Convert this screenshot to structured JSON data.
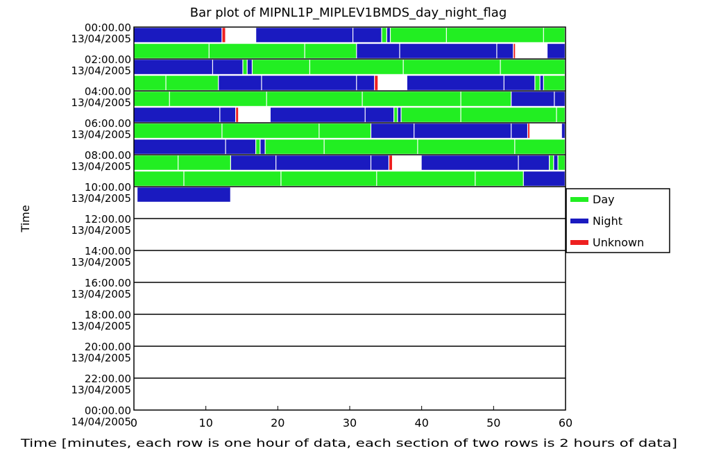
{
  "chart_data": {
    "type": "bar",
    "title": "Bar plot of MIPNL1P_MIPLEV1BMDS_day_night_flag",
    "xlabel": "Time [minutes, each row is one hour of data, each section of two rows is 2 hours of data]",
    "ylabel": "Time",
    "xlim": [
      0,
      60
    ],
    "x_ticks": [
      0,
      10,
      20,
      30,
      40,
      50,
      60
    ],
    "x_tick_labels": [
      "0",
      "10",
      "20",
      "30",
      "40",
      "50",
      "60"
    ],
    "y_tick_labels": [
      {
        "time": "00:00.00",
        "date": "13/04/2005"
      },
      {
        "time": "02:00.00",
        "date": "13/04/2005"
      },
      {
        "time": "04:00.00",
        "date": "13/04/2005"
      },
      {
        "time": "06:00.00",
        "date": "13/04/2005"
      },
      {
        "time": "08:00.00",
        "date": "13/04/2005"
      },
      {
        "time": "10:00.00",
        "date": "13/04/2005"
      },
      {
        "time": "12:00.00",
        "date": "13/04/2005"
      },
      {
        "time": "14:00.00",
        "date": "13/04/2005"
      },
      {
        "time": "16:00.00",
        "date": "13/04/2005"
      },
      {
        "time": "18:00.00",
        "date": "13/04/2005"
      },
      {
        "time": "20:00.00",
        "date": "13/04/2005"
      },
      {
        "time": "22:00.00",
        "date": "13/04/2005"
      },
      {
        "time": "00:00.00",
        "date": "14/04/2005"
      }
    ],
    "legend": {
      "position": "right",
      "entries": [
        {
          "name": "Day",
          "color": "#22ee22"
        },
        {
          "name": "Night",
          "color": "#1a1ac0"
        },
        {
          "name": "Unknown",
          "color": "#ee2020"
        }
      ]
    },
    "colors": {
      "day": "#22ee22",
      "night": "#1a1ac0",
      "unknown": "#ee2020",
      "separator": "#ffffff"
    },
    "grid": false,
    "rows": [
      {
        "segments": [
          [
            "night",
            0,
            12.3
          ],
          [
            "unknown",
            12.3,
            12.8
          ],
          [
            "night",
            17,
            30.5
          ],
          [
            "night",
            30.5,
            34.5
          ],
          [
            "day",
            34.5,
            35.2
          ],
          [
            "night",
            35.2,
            35.7
          ],
          [
            "day",
            35.7,
            43.5
          ],
          [
            "day",
            43.5,
            57
          ],
          [
            "day",
            57,
            60
          ]
        ]
      },
      {
        "segments": [
          [
            "day",
            0,
            10.5
          ],
          [
            "day",
            10.5,
            23.8
          ],
          [
            "day",
            23.8,
            31
          ],
          [
            "night",
            31,
            37
          ],
          [
            "night",
            37,
            50.5
          ],
          [
            "night",
            50.5,
            52.8
          ],
          [
            "unknown",
            52.8,
            53.1
          ],
          [
            "night",
            57.5,
            60
          ]
        ]
      },
      {
        "segments": [
          [
            "night",
            0,
            11
          ],
          [
            "night",
            11,
            15.2
          ],
          [
            "day",
            15.2,
            15.8
          ],
          [
            "night",
            15.8,
            16.5
          ],
          [
            "day",
            16.5,
            24.5
          ],
          [
            "day",
            24.5,
            37.5
          ],
          [
            "day",
            37.5,
            51
          ],
          [
            "day",
            51,
            60
          ]
        ]
      },
      {
        "segments": [
          [
            "day",
            0,
            4.5
          ],
          [
            "day",
            4.5,
            11.8
          ],
          [
            "night",
            11.8,
            17.8
          ],
          [
            "night",
            17.8,
            31
          ],
          [
            "night",
            31,
            33.5
          ],
          [
            "unknown",
            33.5,
            34
          ],
          [
            "night",
            38,
            51.5
          ],
          [
            "night",
            51.5,
            55.8
          ],
          [
            "day",
            55.8,
            56.5
          ],
          [
            "night",
            56.5,
            57
          ],
          [
            "day",
            57,
            60
          ]
        ]
      },
      {
        "segments": [
          [
            "day",
            0,
            5
          ],
          [
            "day",
            5,
            18.5
          ],
          [
            "day",
            18.5,
            31.8
          ],
          [
            "day",
            31.8,
            45.5
          ],
          [
            "day",
            45.5,
            52.5
          ],
          [
            "night",
            52.5,
            58.5
          ],
          [
            "night",
            58.5,
            60
          ]
        ]
      },
      {
        "segments": [
          [
            "night",
            0,
            12
          ],
          [
            "night",
            12,
            14.2
          ],
          [
            "unknown",
            14.2,
            14.6
          ],
          [
            "night",
            19,
            32.2
          ],
          [
            "night",
            32.2,
            36.2
          ],
          [
            "day",
            36.2,
            36.7
          ],
          [
            "night",
            36.7,
            37.2
          ],
          [
            "day",
            37.2,
            45.5
          ],
          [
            "day",
            45.5,
            58.8
          ],
          [
            "day",
            58.8,
            60
          ]
        ]
      },
      {
        "segments": [
          [
            "day",
            0,
            12.3
          ],
          [
            "day",
            12.3,
            25.8
          ],
          [
            "day",
            25.8,
            33
          ],
          [
            "night",
            33,
            39
          ],
          [
            "night",
            39,
            52.5
          ],
          [
            "night",
            52.5,
            54.8
          ],
          [
            "unknown",
            54.8,
            55.1
          ],
          [
            "night",
            59.5,
            60
          ]
        ]
      },
      {
        "segments": [
          [
            "night",
            0,
            12.8
          ],
          [
            "night",
            12.8,
            17
          ],
          [
            "day",
            17,
            17.6
          ],
          [
            "night",
            17.6,
            18.3
          ],
          [
            "day",
            18.3,
            26.5
          ],
          [
            "day",
            26.5,
            39.5
          ],
          [
            "day",
            39.5,
            53
          ],
          [
            "day",
            53,
            60
          ]
        ]
      },
      {
        "segments": [
          [
            "day",
            0,
            6.2
          ],
          [
            "day",
            6.2,
            13.5
          ],
          [
            "night",
            13.5,
            19.8
          ],
          [
            "night",
            19.8,
            33
          ],
          [
            "night",
            33,
            35.5
          ],
          [
            "unknown",
            35.5,
            36
          ],
          [
            "night",
            40,
            53.5
          ],
          [
            "night",
            53.5,
            57.8
          ],
          [
            "day",
            57.8,
            58.4
          ],
          [
            "night",
            58.4,
            59
          ],
          [
            "day",
            59,
            60
          ]
        ]
      },
      {
        "segments": [
          [
            "day",
            0,
            7
          ],
          [
            "day",
            7,
            20.5
          ],
          [
            "day",
            20.5,
            33.8
          ],
          [
            "day",
            33.8,
            47.5
          ],
          [
            "day",
            47.5,
            54.2
          ],
          [
            "night",
            54.2,
            60
          ]
        ]
      },
      {
        "segments": [
          [
            "night",
            0.5,
            13.5
          ]
        ]
      }
    ]
  }
}
